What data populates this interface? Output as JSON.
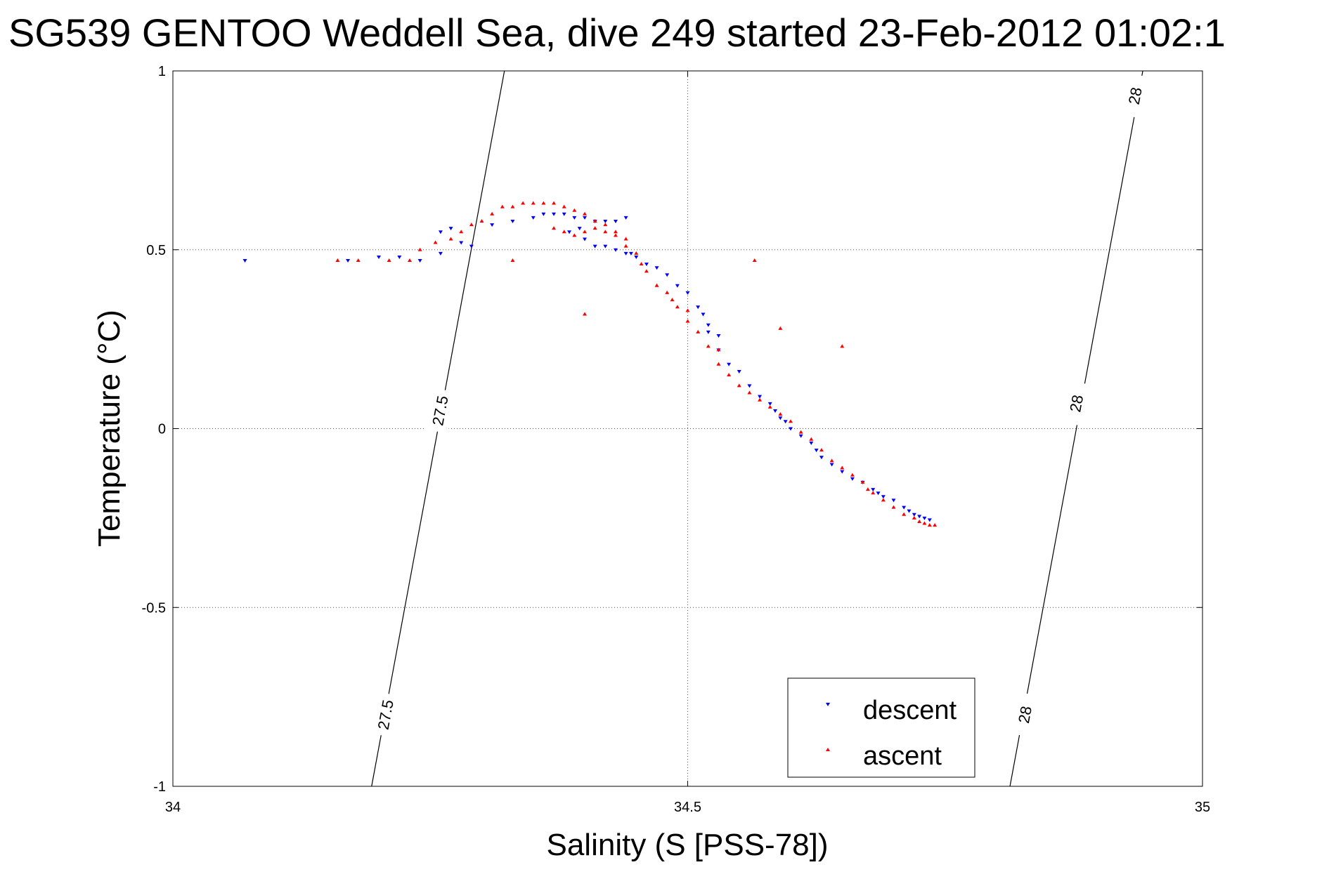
{
  "chart_data": {
    "type": "scatter",
    "title": "SG539 GENTOO Weddell Sea, dive 249 started 23-Feb-2012 01:02:1",
    "xlabel": "Salinity (S [PSS-78])",
    "ylabel": "Temperature (°C)",
    "xlim": [
      34,
      35
    ],
    "ylim": [
      -1,
      1
    ],
    "xticks": [
      34,
      34.5,
      35
    ],
    "xtick_labels": [
      "34",
      "34.5",
      "35"
    ],
    "yticks": [
      -1,
      -0.5,
      0,
      0.5,
      1
    ],
    "ytick_labels": [
      "-1",
      "-0.5",
      "0",
      "0.5",
      "1"
    ],
    "grid": true,
    "legend_position": "bottom-right",
    "density_contours": [
      {
        "label": "27.5",
        "points": [
          [
            34.193,
            -1.0
          ],
          [
            34.322,
            1.0
          ]
        ],
        "label_positions": [
          [
            34.207,
            -0.8
          ],
          [
            34.26,
            0.05
          ]
        ]
      },
      {
        "label": "28",
        "points": [
          [
            34.813,
            -1.0
          ],
          [
            34.942,
            1.0
          ]
        ],
        "label_positions": [
          [
            34.828,
            -0.8
          ],
          [
            34.878,
            0.07
          ],
          [
            34.935,
            0.93
          ]
        ]
      }
    ],
    "series": [
      {
        "name": "descent",
        "color": "#0000ff",
        "marker": "triangle-down",
        "points": [
          [
            34.07,
            0.47
          ],
          [
            34.17,
            0.47
          ],
          [
            34.2,
            0.48
          ],
          [
            34.22,
            0.48
          ],
          [
            34.24,
            0.47
          ],
          [
            34.26,
            0.55
          ],
          [
            34.27,
            0.56
          ],
          [
            34.28,
            0.52
          ],
          [
            34.26,
            0.49
          ],
          [
            34.29,
            0.51
          ],
          [
            34.31,
            0.57
          ],
          [
            34.33,
            0.58
          ],
          [
            34.35,
            0.59
          ],
          [
            34.36,
            0.6
          ],
          [
            34.37,
            0.6
          ],
          [
            34.38,
            0.6
          ],
          [
            34.39,
            0.59
          ],
          [
            34.4,
            0.59
          ],
          [
            34.41,
            0.58
          ],
          [
            34.42,
            0.58
          ],
          [
            34.43,
            0.58
          ],
          [
            34.44,
            0.59
          ],
          [
            34.385,
            0.55
          ],
          [
            34.395,
            0.56
          ],
          [
            34.4,
            0.53
          ],
          [
            34.41,
            0.51
          ],
          [
            34.42,
            0.51
          ],
          [
            34.43,
            0.5
          ],
          [
            34.44,
            0.49
          ],
          [
            34.445,
            0.49
          ],
          [
            34.45,
            0.48
          ],
          [
            34.46,
            0.46
          ],
          [
            34.47,
            0.45
          ],
          [
            34.48,
            0.43
          ],
          [
            34.49,
            0.4
          ],
          [
            34.5,
            0.38
          ],
          [
            34.51,
            0.34
          ],
          [
            34.515,
            0.32
          ],
          [
            34.52,
            0.29
          ],
          [
            34.52,
            0.27
          ],
          [
            34.53,
            0.26
          ],
          [
            34.53,
            0.22
          ],
          [
            34.54,
            0.18
          ],
          [
            34.55,
            0.16
          ],
          [
            34.56,
            0.12
          ],
          [
            34.57,
            0.09
          ],
          [
            34.58,
            0.07
          ],
          [
            34.585,
            0.05
          ],
          [
            34.59,
            0.03
          ],
          [
            34.595,
            0.02
          ],
          [
            34.6,
            0.0
          ],
          [
            34.61,
            -0.02
          ],
          [
            34.62,
            -0.04
          ],
          [
            34.625,
            -0.06
          ],
          [
            34.63,
            -0.08
          ],
          [
            34.64,
            -0.1
          ],
          [
            34.65,
            -0.12
          ],
          [
            34.66,
            -0.14
          ],
          [
            34.67,
            -0.15
          ],
          [
            34.68,
            -0.17
          ],
          [
            34.685,
            -0.18
          ],
          [
            34.69,
            -0.19
          ],
          [
            34.7,
            -0.2
          ],
          [
            34.71,
            -0.22
          ],
          [
            34.715,
            -0.23
          ],
          [
            34.72,
            -0.24
          ],
          [
            34.725,
            -0.245
          ],
          [
            34.73,
            -0.25
          ],
          [
            34.735,
            -0.255
          ]
        ]
      },
      {
        "name": "ascent",
        "color": "#ff0000",
        "marker": "triangle-up",
        "points": [
          [
            34.16,
            0.47
          ],
          [
            34.18,
            0.47
          ],
          [
            34.21,
            0.47
          ],
          [
            34.23,
            0.47
          ],
          [
            34.24,
            0.5
          ],
          [
            34.255,
            0.52
          ],
          [
            34.27,
            0.53
          ],
          [
            34.28,
            0.55
          ],
          [
            34.29,
            0.57
          ],
          [
            34.3,
            0.58
          ],
          [
            34.31,
            0.6
          ],
          [
            34.32,
            0.62
          ],
          [
            34.33,
            0.62
          ],
          [
            34.34,
            0.63
          ],
          [
            34.35,
            0.63
          ],
          [
            34.36,
            0.63
          ],
          [
            34.37,
            0.63
          ],
          [
            34.38,
            0.62
          ],
          [
            34.39,
            0.61
          ],
          [
            34.4,
            0.6
          ],
          [
            34.41,
            0.58
          ],
          [
            34.42,
            0.57
          ],
          [
            34.43,
            0.55
          ],
          [
            34.44,
            0.53
          ],
          [
            34.33,
            0.47
          ],
          [
            34.37,
            0.56
          ],
          [
            34.38,
            0.55
          ],
          [
            34.39,
            0.54
          ],
          [
            34.4,
            0.55
          ],
          [
            34.41,
            0.56
          ],
          [
            34.42,
            0.55
          ],
          [
            34.43,
            0.54
          ],
          [
            34.44,
            0.51
          ],
          [
            34.45,
            0.49
          ],
          [
            34.455,
            0.46
          ],
          [
            34.46,
            0.44
          ],
          [
            34.47,
            0.4
          ],
          [
            34.48,
            0.38
          ],
          [
            34.485,
            0.36
          ],
          [
            34.49,
            0.34
          ],
          [
            34.5,
            0.33
          ],
          [
            34.4,
            0.32
          ],
          [
            34.5,
            0.3
          ],
          [
            34.51,
            0.27
          ],
          [
            34.52,
            0.23
          ],
          [
            34.53,
            0.18
          ],
          [
            34.54,
            0.15
          ],
          [
            34.55,
            0.12
          ],
          [
            34.56,
            0.1
          ],
          [
            34.57,
            0.08
          ],
          [
            34.58,
            0.06
          ],
          [
            34.59,
            0.04
          ],
          [
            34.6,
            0.02
          ],
          [
            34.61,
            -0.01
          ],
          [
            34.62,
            -0.03
          ],
          [
            34.63,
            -0.06
          ],
          [
            34.64,
            -0.09
          ],
          [
            34.65,
            -0.11
          ],
          [
            34.66,
            -0.13
          ],
          [
            34.67,
            -0.15
          ],
          [
            34.675,
            -0.17
          ],
          [
            34.68,
            -0.18
          ],
          [
            34.69,
            -0.2
          ],
          [
            34.7,
            -0.22
          ],
          [
            34.71,
            -0.24
          ],
          [
            34.72,
            -0.25
          ],
          [
            34.725,
            -0.26
          ],
          [
            34.73,
            -0.265
          ],
          [
            34.735,
            -0.27
          ],
          [
            34.74,
            -0.27
          ],
          [
            34.565,
            0.47
          ],
          [
            34.59,
            0.28
          ],
          [
            34.65,
            0.23
          ],
          [
            34.53,
            0.22
          ]
        ]
      }
    ]
  }
}
